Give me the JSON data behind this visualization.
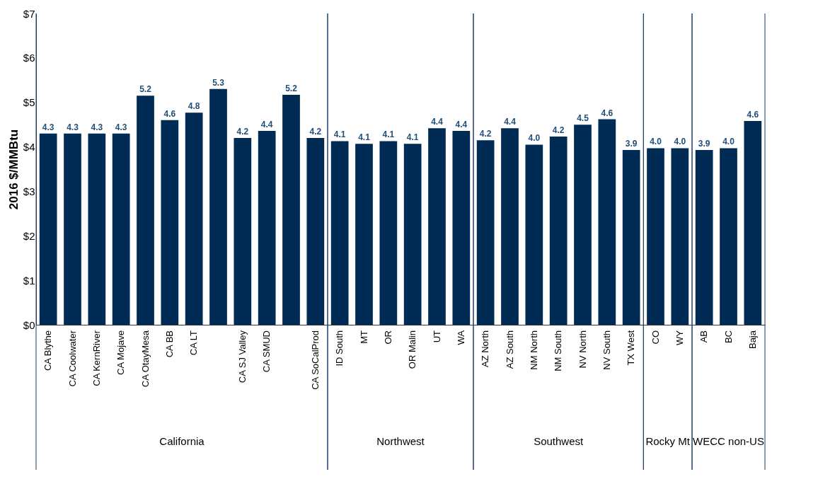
{
  "chart_data": {
    "type": "bar",
    "ylabel": "2016 $/MMBtu",
    "categories": [
      "CA Blythe",
      "CA Coolwater",
      "CA KernRiver",
      "CA Mojave",
      "CA OtayMesa",
      "CA BB",
      "CA LT",
      null,
      "CA SJ Valley",
      "CA SMUD",
      null,
      "CA SoCalProd",
      "ID South",
      "MT",
      "OR",
      "OR Malin",
      "UT",
      "WA",
      "AZ North",
      "AZ South",
      "NM North",
      "NM South",
      "NV North",
      "NV South",
      "TX West",
      "CO",
      "WY",
      "AB",
      "BC",
      "Baja"
    ],
    "values": [
      4.3,
      4.3,
      4.3,
      4.3,
      5.15,
      4.6,
      4.77,
      5.3,
      4.2,
      4.36,
      5.17,
      4.2,
      4.13,
      4.07,
      4.13,
      4.07,
      4.42,
      4.36,
      4.15,
      4.42,
      4.05,
      4.23,
      4.5,
      4.62,
      3.93,
      3.97,
      3.97,
      3.93,
      3.97,
      4.58
    ],
    "value_labels": [
      "4.3",
      "4.3",
      "4.3",
      "4.3",
      "5.2",
      "4.6",
      "4.8",
      "5.3",
      "4.2",
      "4.4",
      "5.2",
      "4.2",
      "4.1",
      "4.1",
      "4.1",
      "4.1",
      "4.4",
      "4.4",
      "4.2",
      "4.4",
      "4.0",
      "4.2",
      "4.5",
      "4.6",
      "3.9",
      "4.0",
      "4.0",
      "3.9",
      "4.0",
      "4.6"
    ],
    "color": "#002b54",
    "ylim": [
      0,
      7
    ],
    "yticks": [
      {
        "value": 0,
        "label": "$0"
      },
      {
        "value": 1,
        "label": "$1"
      },
      {
        "value": 2,
        "label": "$2"
      },
      {
        "value": 3,
        "label": "$3"
      },
      {
        "value": 4,
        "label": "$4"
      },
      {
        "value": 5,
        "label": "$5"
      },
      {
        "value": 6,
        "label": "$6"
      },
      {
        "value": 7,
        "label": "$7"
      }
    ],
    "grid": false,
    "annotations": [
      "California",
      "Northwest",
      "Southwest",
      "Rocky Mt",
      "WECC non-US"
    ]
  }
}
